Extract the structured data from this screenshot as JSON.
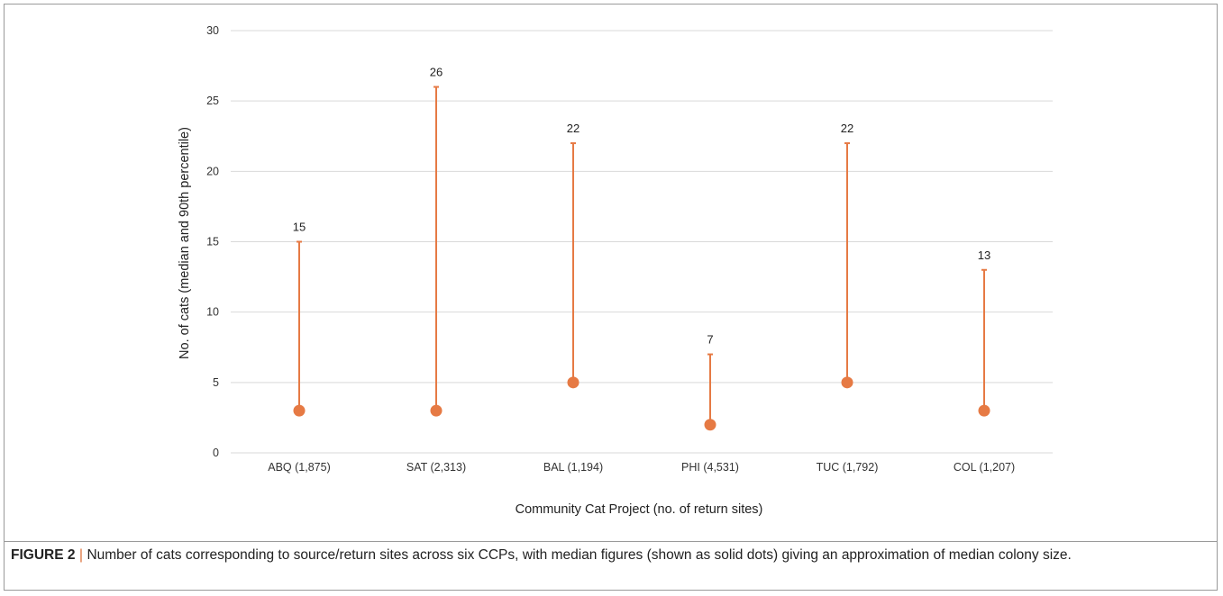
{
  "chart_data": {
    "type": "scatter",
    "subtype": "median-to-90th-percentile range",
    "categories": [
      "ABQ (1,875)",
      "SAT (2,313)",
      "BAL (1,194)",
      "PHI (4,531)",
      "TUC (1,792)",
      "COL (1,207)"
    ],
    "series": [
      {
        "name": "",
        "values": [
          3,
          3,
          5,
          2,
          5,
          3
        ]
      },
      {
        "name": "",
        "values": [
          15,
          26,
          22,
          7,
          22,
          13
        ]
      }
    ],
    "data_labels": [
      "15",
      "26",
      "22",
      "7",
      "22",
      "13"
    ],
    "xlabel": "Community Cat Project (no. of return sites)",
    "ylabel": "No. of cats (median and 90th percentile)",
    "ylim": [
      0,
      30
    ],
    "yticks": [
      0,
      5,
      10,
      15,
      20,
      25,
      30
    ],
    "grid": true,
    "legend": "none",
    "colors": {
      "series": "#e67a44",
      "grid": "#d9d9d9",
      "text": "#333333"
    }
  },
  "caption": {
    "label": "FIGURE 2",
    "separator": "|",
    "text": "Number of cats corresponding to source/return sites across six CCPs, with median figures (shown as solid dots) giving an approximation of median colony size."
  }
}
